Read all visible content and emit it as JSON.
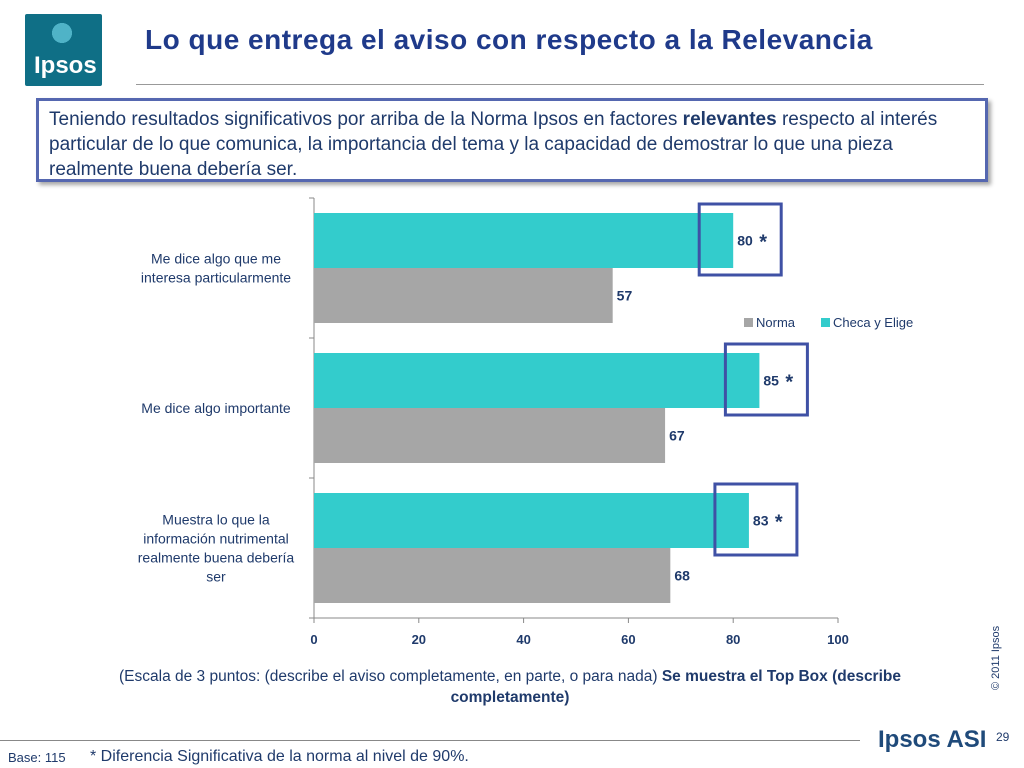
{
  "header": {
    "logo_text": "Ipsos",
    "title": "Lo que entrega el aviso con respecto a la Relevancia"
  },
  "callout": {
    "text_before": "Teniendo resultados significativos por arriba de la Norma Ipsos en factores ",
    "text_bold": "relevantes",
    "text_after": " respecto al interés particular de lo que comunica, la importancia del tema y la capacidad de demostrar lo que una pieza realmente buena debería ser."
  },
  "chart_data": {
    "type": "bar",
    "orientation": "horizontal",
    "categories": [
      [
        "Me dice algo que me",
        "interesa particularmente"
      ],
      [
        "Me dice algo importante"
      ],
      [
        "Muestra lo que la",
        "información  nutrimental",
        "realmente buena debería",
        "ser"
      ]
    ],
    "series": [
      {
        "name": "Checa y Elige",
        "color": "#33cccc",
        "values": [
          80,
          85,
          83
        ],
        "labels": [
          "80",
          "85",
          "83"
        ],
        "significance": [
          "*",
          "*",
          "*"
        ]
      },
      {
        "name": "Norma",
        "color": "#a6a6a6",
        "values": [
          57,
          67,
          68
        ],
        "labels": [
          "57",
          "67",
          "68"
        ]
      }
    ],
    "legend": [
      "Norma",
      "Checa y Elige"
    ],
    "legend_position": "right-top",
    "xlim": [
      0,
      100
    ],
    "xticks": [
      "0",
      "20",
      "40",
      "60",
      "80",
      "100"
    ],
    "highlight_color": "#3f51a5"
  },
  "notes": {
    "scale_text": "(Escala de 3 puntos: (describe el aviso completamente,  en parte, o para nada) ",
    "scale_bold": "Se muestra el Top Box (describe completamente)",
    "copyright": "© 2011 Ipsos",
    "footer_logo": "Ipsos ASI",
    "page_number": "29",
    "base": "Base: 115",
    "significance": "* Diferencia Significativa de la norma al nivel de 90%."
  }
}
